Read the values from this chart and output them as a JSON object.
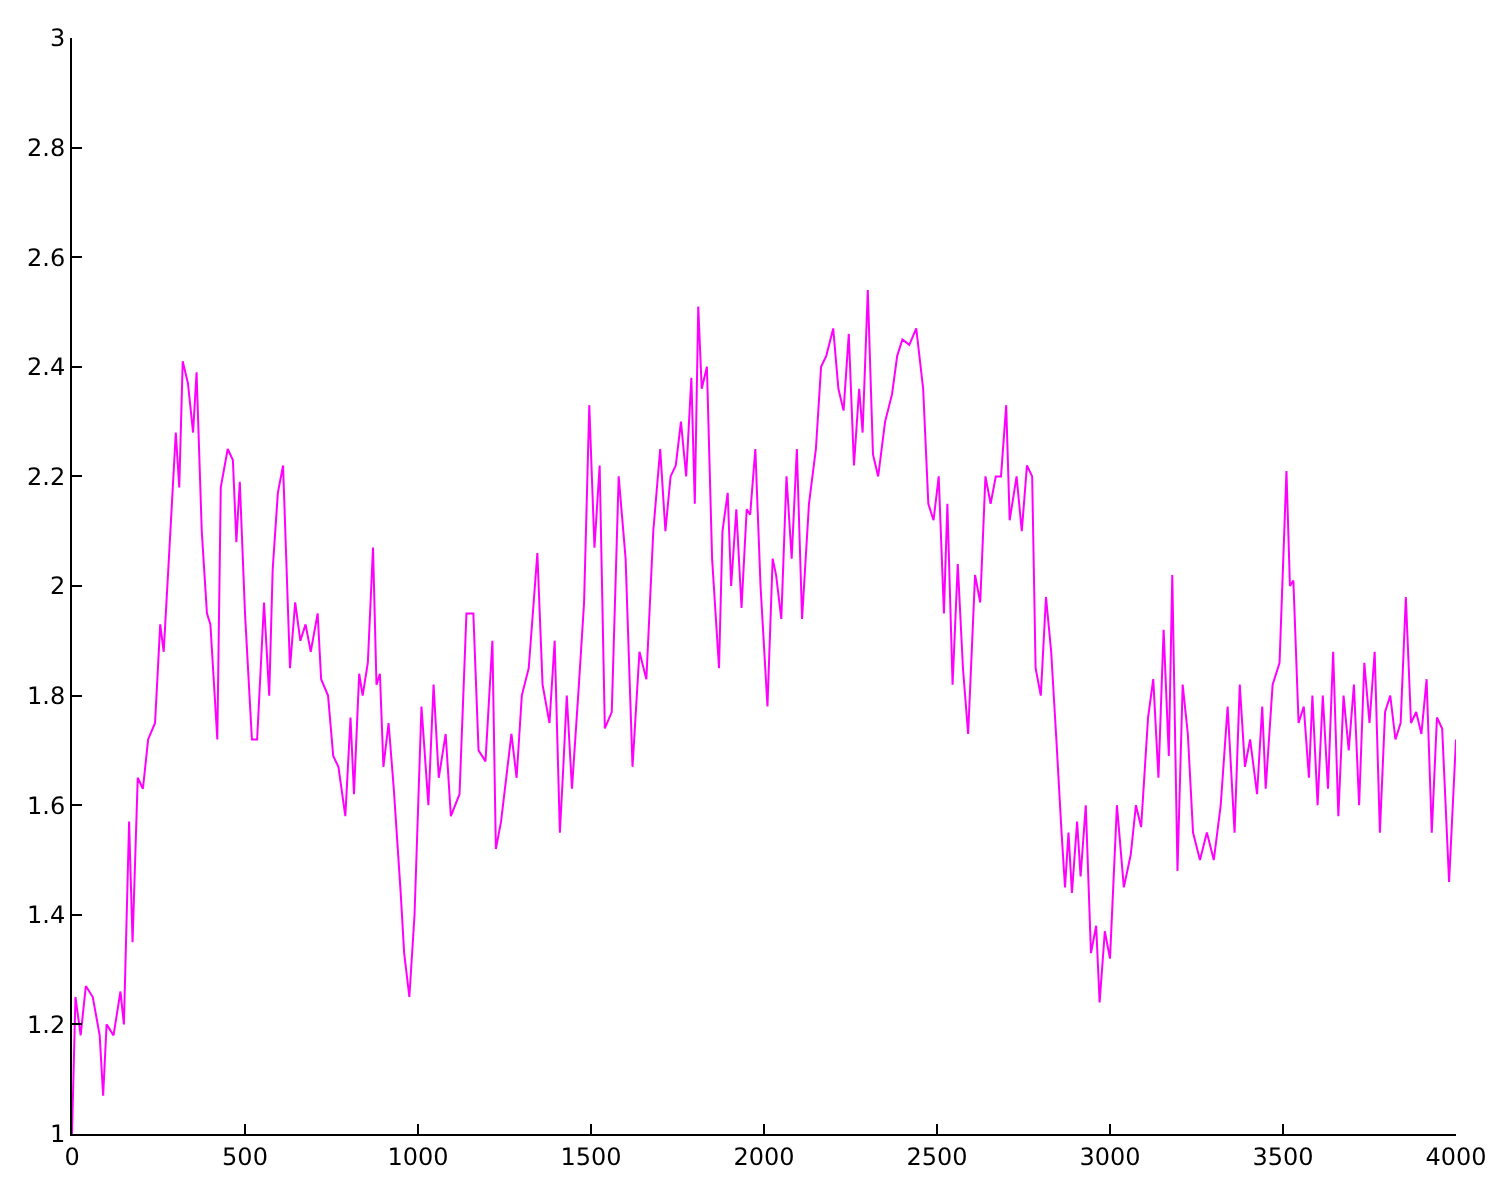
{
  "chart_data": {
    "type": "line",
    "xlim": [
      0,
      4000
    ],
    "ylim": [
      1,
      3
    ],
    "xticks": [
      0,
      500,
      1000,
      1500,
      2000,
      2500,
      3000,
      3500,
      4000
    ],
    "yticks": [
      1,
      1.2,
      1.4,
      1.6,
      1.8,
      2,
      2.2,
      2.4,
      2.6,
      2.8,
      3
    ],
    "legend": false,
    "marker": "none",
    "line_style": "solid",
    "x": [
      0,
      10,
      25,
      40,
      60,
      80,
      90,
      100,
      120,
      140,
      150,
      165,
      175,
      190,
      205,
      220,
      240,
      255,
      265,
      280,
      300,
      310,
      320,
      335,
      350,
      360,
      375,
      390,
      400,
      420,
      430,
      450,
      465,
      475,
      485,
      500,
      520,
      535,
      555,
      570,
      580,
      595,
      610,
      630,
      645,
      660,
      675,
      690,
      710,
      720,
      740,
      755,
      770,
      790,
      805,
      815,
      830,
      840,
      855,
      870,
      880,
      890,
      900,
      915,
      930,
      950,
      960,
      975,
      990,
      1010,
      1030,
      1045,
      1060,
      1080,
      1095,
      1120,
      1140,
      1160,
      1175,
      1195,
      1215,
      1225,
      1240,
      1270,
      1285,
      1300,
      1320,
      1345,
      1360,
      1380,
      1395,
      1410,
      1420,
      1430,
      1445,
      1465,
      1480,
      1495,
      1510,
      1525,
      1540,
      1560,
      1580,
      1600,
      1620,
      1640,
      1660,
      1680,
      1700,
      1715,
      1730,
      1745,
      1760,
      1775,
      1790,
      1800,
      1810,
      1820,
      1835,
      1850,
      1870,
      1880,
      1895,
      1905,
      1920,
      1935,
      1950,
      1960,
      1975,
      1990,
      2010,
      2025,
      2035,
      2050,
      2065,
      2080,
      2095,
      2110,
      2130,
      2150,
      2165,
      2180,
      2200,
      2215,
      2230,
      2245,
      2260,
      2275,
      2285,
      2300,
      2315,
      2330,
      2350,
      2370,
      2385,
      2400,
      2420,
      2440,
      2460,
      2475,
      2490,
      2505,
      2520,
      2530,
      2545,
      2560,
      2575,
      2590,
      2610,
      2625,
      2640,
      2655,
      2670,
      2685,
      2700,
      2710,
      2730,
      2745,
      2760,
      2775,
      2785,
      2800,
      2815,
      2830,
      2845,
      2860,
      2870,
      2880,
      2890,
      2905,
      2915,
      2930,
      2945,
      2960,
      2970,
      2985,
      3000,
      3020,
      3040,
      3060,
      3075,
      3090,
      3110,
      3125,
      3140,
      3155,
      3170,
      3180,
      3195,
      3210,
      3225,
      3240,
      3260,
      3280,
      3300,
      3320,
      3340,
      3360,
      3375,
      3390,
      3405,
      3425,
      3440,
      3450,
      3470,
      3490,
      3510,
      3520,
      3530,
      3545,
      3560,
      3575,
      3585,
      3600,
      3615,
      3630,
      3645,
      3660,
      3675,
      3690,
      3705,
      3720,
      3735,
      3750,
      3765,
      3780,
      3795,
      3810,
      3825,
      3840,
      3855,
      3870,
      3885,
      3900,
      3915,
      3930,
      3945,
      3960,
      3980,
      4000
    ],
    "series": [
      {
        "color": "#ff00ff",
        "values": [
          1.0,
          1.25,
          1.18,
          1.27,
          1.25,
          1.18,
          1.07,
          1.2,
          1.18,
          1.26,
          1.2,
          1.57,
          1.35,
          1.65,
          1.63,
          1.72,
          1.75,
          1.93,
          1.88,
          2.05,
          2.28,
          2.18,
          2.41,
          2.37,
          2.28,
          2.39,
          2.1,
          1.95,
          1.93,
          1.72,
          2.18,
          2.25,
          2.23,
          2.08,
          2.19,
          1.95,
          1.72,
          1.72,
          1.97,
          1.8,
          2.03,
          2.17,
          2.22,
          1.85,
          1.97,
          1.9,
          1.93,
          1.88,
          1.95,
          1.83,
          1.8,
          1.69,
          1.67,
          1.58,
          1.76,
          1.62,
          1.84,
          1.8,
          1.86,
          2.07,
          1.82,
          1.84,
          1.67,
          1.75,
          1.63,
          1.44,
          1.33,
          1.25,
          1.4,
          1.78,
          1.6,
          1.82,
          1.65,
          1.73,
          1.58,
          1.62,
          1.95,
          1.95,
          1.7,
          1.68,
          1.9,
          1.52,
          1.57,
          1.73,
          1.65,
          1.8,
          1.85,
          2.06,
          1.82,
          1.75,
          1.9,
          1.55,
          1.67,
          1.8,
          1.63,
          1.82,
          1.97,
          2.33,
          2.07,
          2.22,
          1.74,
          1.77,
          2.2,
          2.05,
          1.67,
          1.88,
          1.83,
          2.1,
          2.25,
          2.1,
          2.2,
          2.22,
          2.3,
          2.2,
          2.38,
          2.15,
          2.51,
          2.36,
          2.4,
          2.05,
          1.85,
          2.1,
          2.17,
          2.0,
          2.14,
          1.96,
          2.14,
          2.13,
          2.25,
          2.0,
          1.78,
          2.05,
          2.02,
          1.94,
          2.2,
          2.05,
          2.25,
          1.94,
          2.15,
          2.25,
          2.4,
          2.42,
          2.47,
          2.36,
          2.32,
          2.46,
          2.22,
          2.36,
          2.28,
          2.54,
          2.24,
          2.2,
          2.3,
          2.35,
          2.42,
          2.45,
          2.44,
          2.47,
          2.36,
          2.15,
          2.12,
          2.2,
          1.95,
          2.15,
          1.82,
          2.04,
          1.85,
          1.73,
          2.02,
          1.97,
          2.2,
          2.15,
          2.2,
          2.2,
          2.33,
          2.12,
          2.2,
          2.1,
          2.22,
          2.2,
          1.85,
          1.8,
          1.98,
          1.88,
          1.72,
          1.55,
          1.45,
          1.55,
          1.44,
          1.57,
          1.47,
          1.6,
          1.33,
          1.38,
          1.24,
          1.37,
          1.32,
          1.6,
          1.45,
          1.51,
          1.6,
          1.56,
          1.76,
          1.83,
          1.65,
          1.92,
          1.69,
          2.02,
          1.48,
          1.82,
          1.73,
          1.55,
          1.5,
          1.55,
          1.5,
          1.6,
          1.78,
          1.55,
          1.82,
          1.67,
          1.72,
          1.62,
          1.78,
          1.63,
          1.82,
          1.86,
          2.21,
          2.0,
          2.01,
          1.75,
          1.78,
          1.65,
          1.8,
          1.6,
          1.8,
          1.63,
          1.88,
          1.58,
          1.8,
          1.7,
          1.82,
          1.6,
          1.86,
          1.75,
          1.88,
          1.55,
          1.77,
          1.8,
          1.72,
          1.75,
          1.98,
          1.75,
          1.77,
          1.73,
          1.83,
          1.55,
          1.76,
          1.74,
          1.46,
          1.72
        ]
      }
    ]
  }
}
